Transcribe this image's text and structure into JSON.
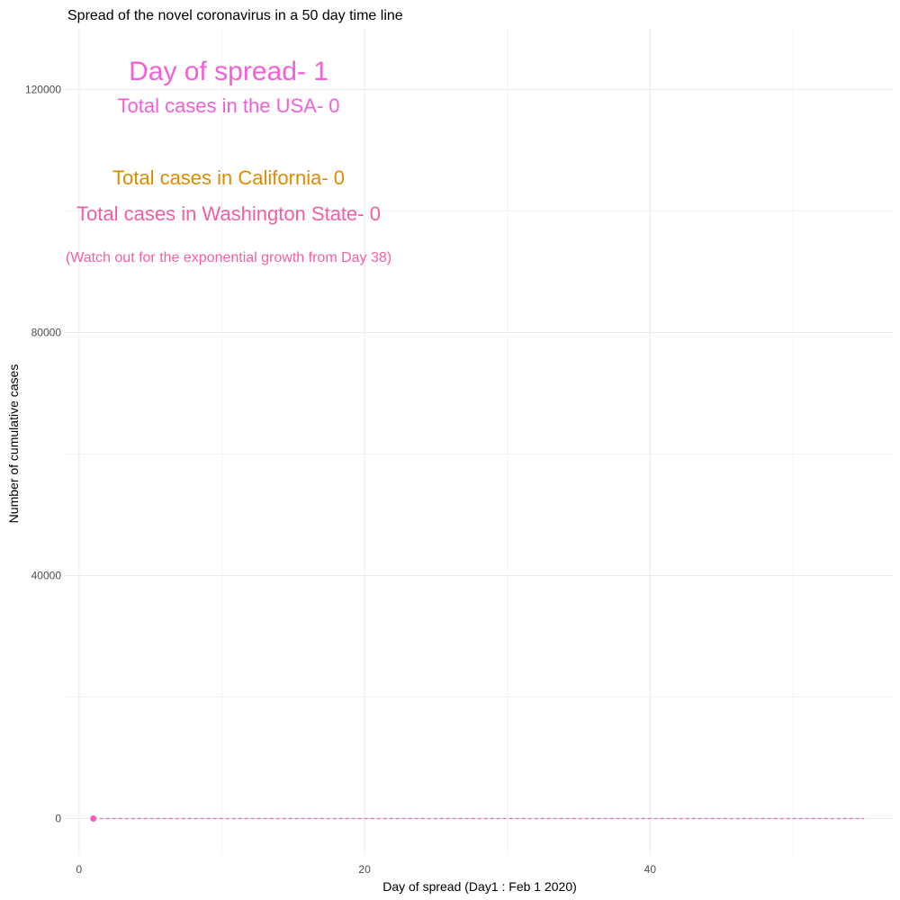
{
  "chart_data": {
    "type": "line",
    "title": "Spread of the novel coronavirus in a 50 day time line",
    "xlabel": "Day of spread (Day1 : Feb 1 2020)",
    "ylabel": "Number of cumulative cases",
    "xlim": [
      -1,
      57
    ],
    "ylim": [
      -6000,
      130000
    ],
    "x_ticks": [
      0,
      20,
      40
    ],
    "x_minor_ticks": [
      10,
      30,
      50
    ],
    "y_ticks": [
      0,
      40000,
      80000,
      120000
    ],
    "y_minor_ticks": [
      20000,
      60000,
      100000
    ],
    "grid": true,
    "legend": "none",
    "series": [
      {
        "name": "",
        "color": "#f45fbd",
        "x": [
          1
        ],
        "y": [
          0
        ],
        "style": "point"
      },
      {
        "name": "",
        "color": "#f45fbd",
        "x": [
          1,
          55
        ],
        "y": [
          0,
          0
        ],
        "style": "dashed"
      }
    ],
    "annotations": [
      {
        "text": "Day of spread- 1",
        "color": "#f45fd9",
        "size": 30
      },
      {
        "text": "Total cases in the USA- 0",
        "color": "#f45fd9",
        "size": 22
      },
      {
        "text": "Total cases in California- 0",
        "color": "#e08a00",
        "size": 22
      },
      {
        "text": "Total cases in Washington State- 0",
        "color": "#f45fa4",
        "size": 22
      },
      {
        "text": "(Watch out for the exponential growth from Day 38)",
        "color": "#f45fa4",
        "size": 16
      }
    ]
  }
}
